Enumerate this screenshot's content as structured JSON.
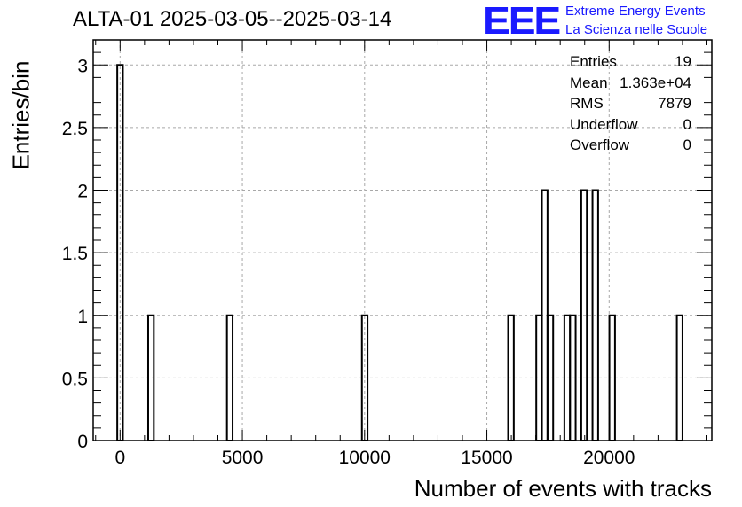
{
  "title": "ALTA-01 2025-03-05--2025-03-14",
  "logo": {
    "mark": "EEE",
    "line1": "Extreme Energy Events",
    "line2": "La Scienza nelle Scuole",
    "color": "#1a1aff"
  },
  "stats": [
    {
      "label": "Entries",
      "value": "19"
    },
    {
      "label": "Mean",
      "value": "1.363e+04"
    },
    {
      "label": "RMS",
      "value": "7879"
    },
    {
      "label": "Underflow",
      "value": "0"
    },
    {
      "label": "Overflow",
      "value": "0"
    }
  ],
  "chart_data": {
    "type": "bar",
    "histogram": true,
    "title": "ALTA-01 2025-03-05--2025-03-14",
    "xlabel": "Number of events with tracks",
    "ylabel": "Entries/bin",
    "xlim": [
      -1100,
      24200
    ],
    "ylim": [
      0,
      3.2
    ],
    "bin_width": 230,
    "x_ticks": [
      0,
      5000,
      10000,
      15000,
      20000
    ],
    "x_tick_labels": [
      "0",
      "5000",
      "10000",
      "15000",
      "20000"
    ],
    "y_ticks": [
      0,
      0.5,
      1,
      1.5,
      2,
      2.5,
      3
    ],
    "y_tick_labels": [
      "0",
      "0.5",
      "1",
      "1.5",
      "2",
      "2.5",
      "3"
    ],
    "grid": true,
    "bins": [
      {
        "x": -115,
        "count": 3
      },
      {
        "x": 1150,
        "count": 1
      },
      {
        "x": 4370,
        "count": 1
      },
      {
        "x": 9890,
        "count": 1
      },
      {
        "x": 15870,
        "count": 1
      },
      {
        "x": 17020,
        "count": 1
      },
      {
        "x": 17250,
        "count": 2
      },
      {
        "x": 17480,
        "count": 1
      },
      {
        "x": 18170,
        "count": 1
      },
      {
        "x": 18400,
        "count": 1
      },
      {
        "x": 18860,
        "count": 2
      },
      {
        "x": 19320,
        "count": 2
      },
      {
        "x": 20010,
        "count": 1
      },
      {
        "x": 22770,
        "count": 1
      }
    ]
  }
}
